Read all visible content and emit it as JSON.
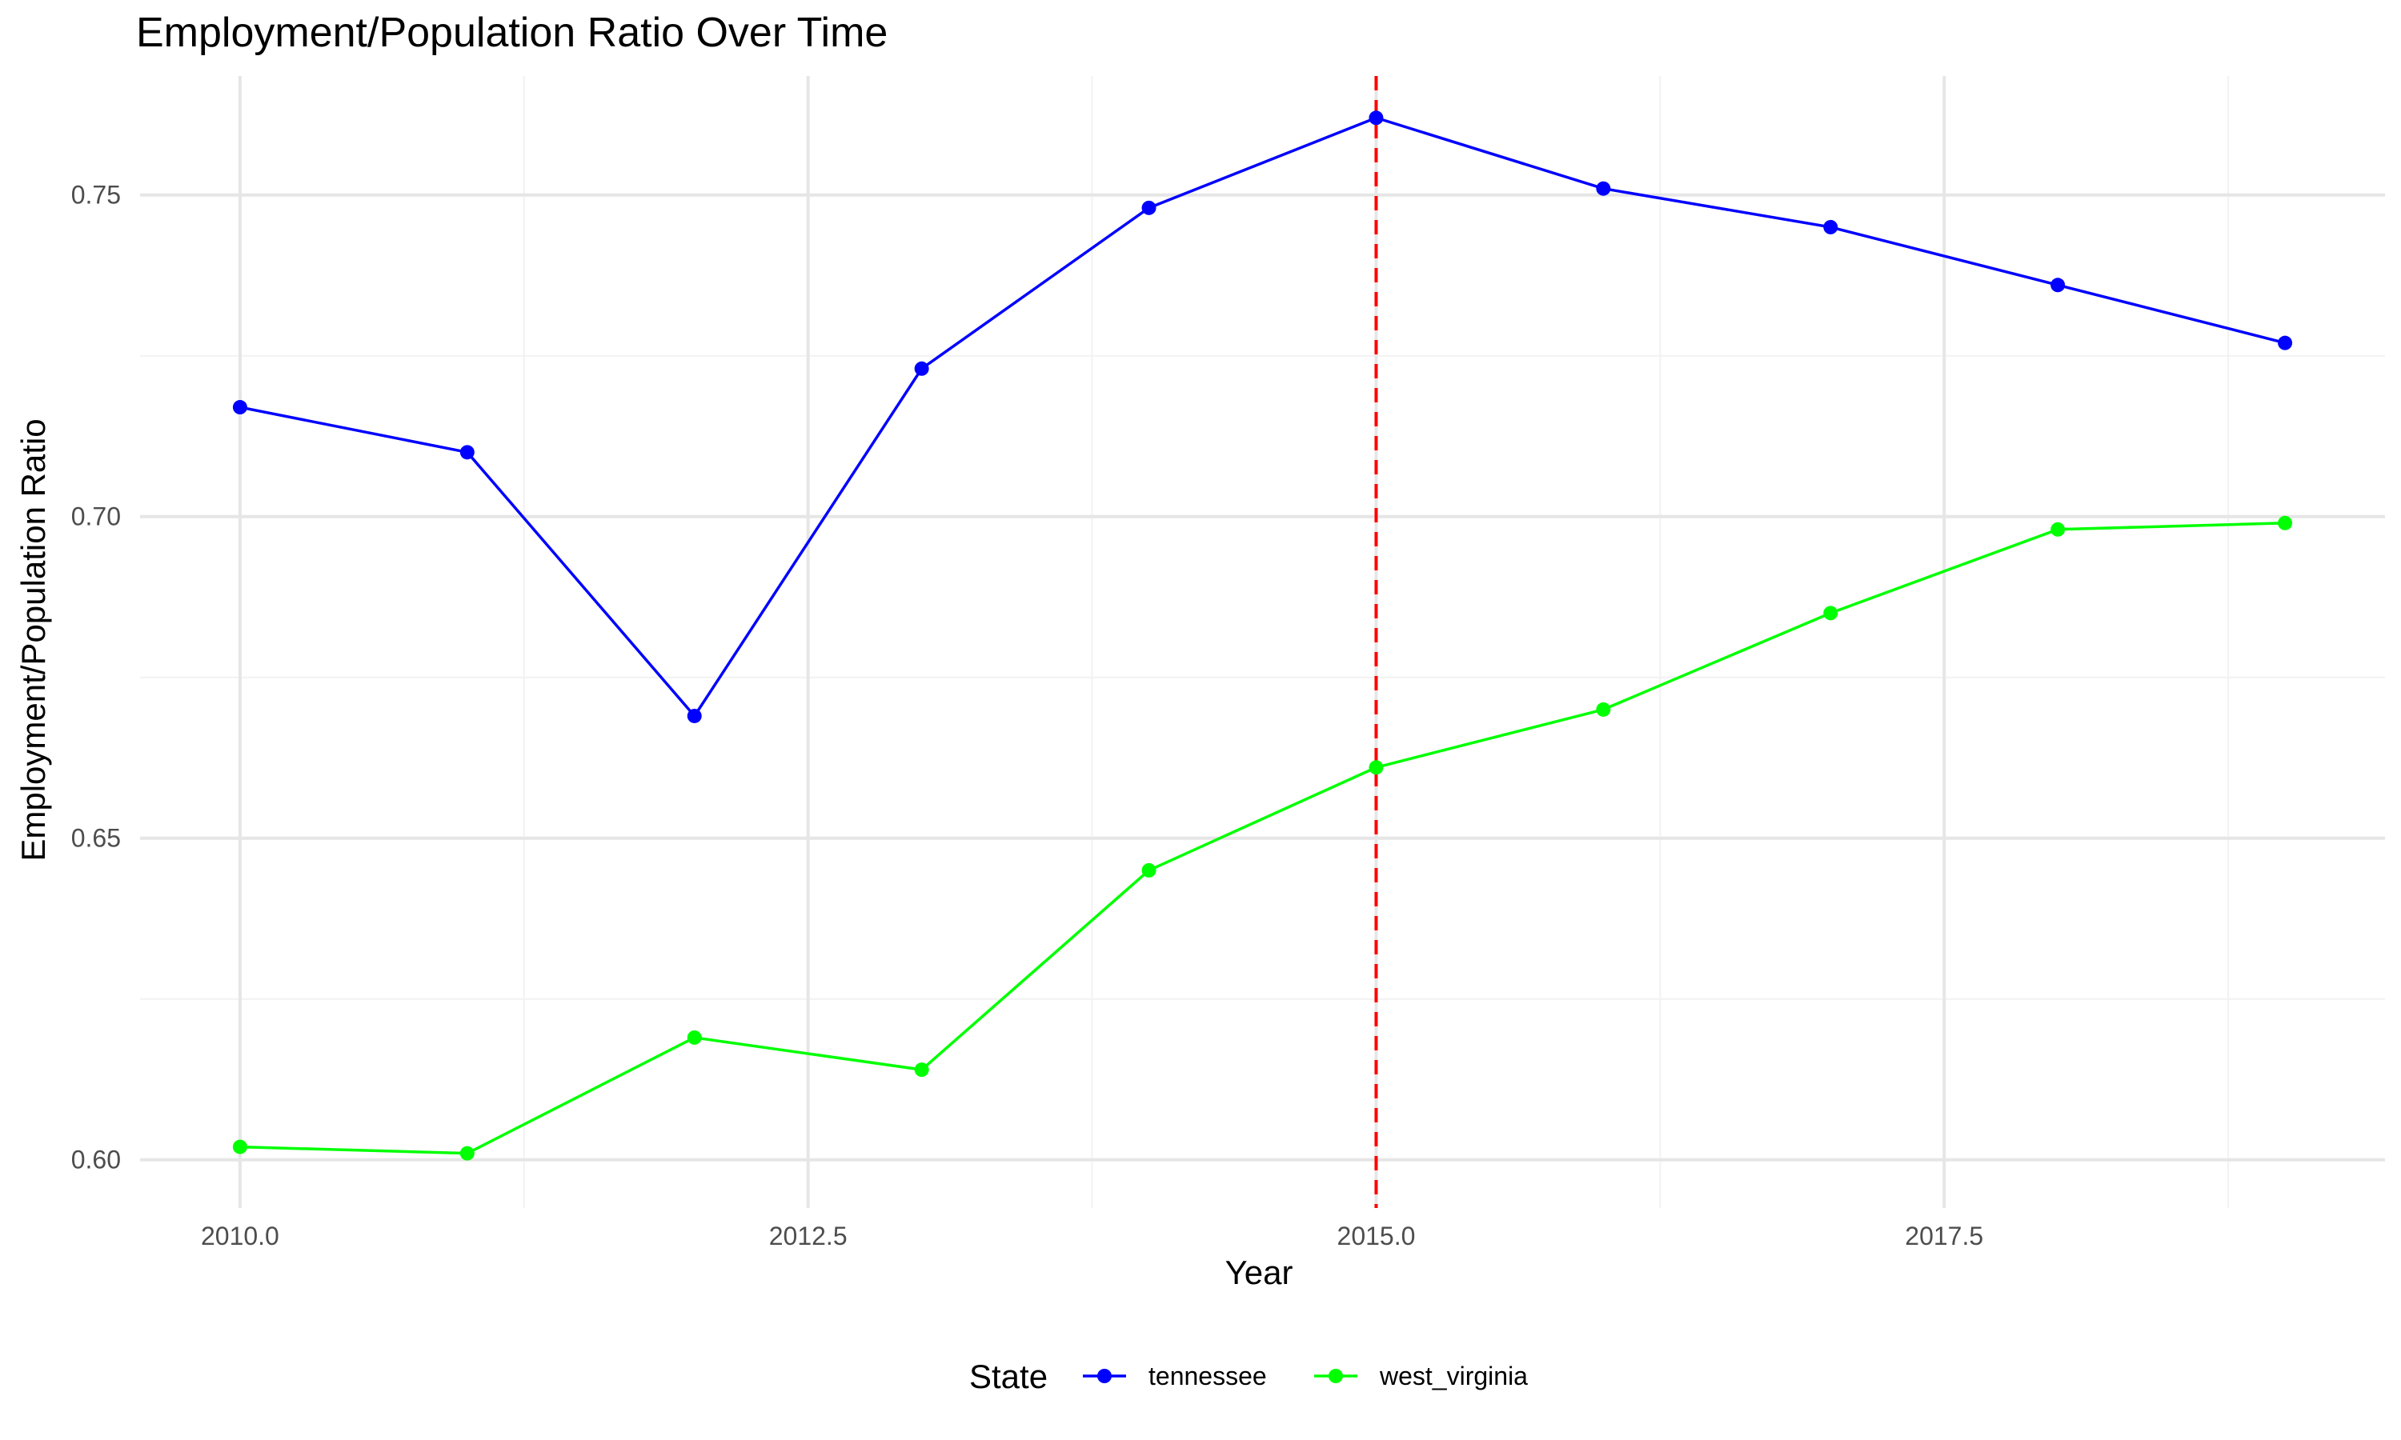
{
  "chart_data": {
    "type": "line",
    "title": "Employment/Population Ratio Over Time",
    "xlabel": "Year",
    "ylabel": "Employment/Population Ratio",
    "xlim": [
      2009.56,
      2019.44
    ],
    "ylim": [
      0.5925,
      0.7685
    ],
    "x_ticks": [
      2010.0,
      2012.5,
      2015.0,
      2017.5
    ],
    "x_tick_labels": [
      "2010.0",
      "2012.5",
      "2015.0",
      "2017.5"
    ],
    "y_ticks": [
      0.6,
      0.65,
      0.7,
      0.75
    ],
    "y_tick_labels": [
      "0.60",
      "0.65",
      "0.70",
      "0.75"
    ],
    "x_minor_ticks": [
      2011.25,
      2013.75,
      2016.25,
      2018.75
    ],
    "y_minor_ticks": [
      0.625,
      0.675,
      0.725
    ],
    "grid": true,
    "reference_line": {
      "axis": "x",
      "value": 2015,
      "color": "#ff0000",
      "style": "dashed"
    },
    "legend_title": "State",
    "legend_position": "bottom",
    "x": [
      2010,
      2011,
      2012,
      2013,
      2014,
      2015,
      2016,
      2017,
      2018,
      2019
    ],
    "series": [
      {
        "name": "tennessee",
        "color": "#0000ff",
        "values": [
          0.717,
          0.71,
          0.669,
          0.723,
          0.748,
          0.762,
          0.751,
          0.745,
          0.736,
          0.727
        ]
      },
      {
        "name": "west_virginia",
        "color": "#00ff00",
        "values": [
          0.602,
          0.601,
          0.619,
          0.614,
          0.645,
          0.661,
          0.67,
          0.685,
          0.698,
          0.699
        ]
      }
    ]
  }
}
